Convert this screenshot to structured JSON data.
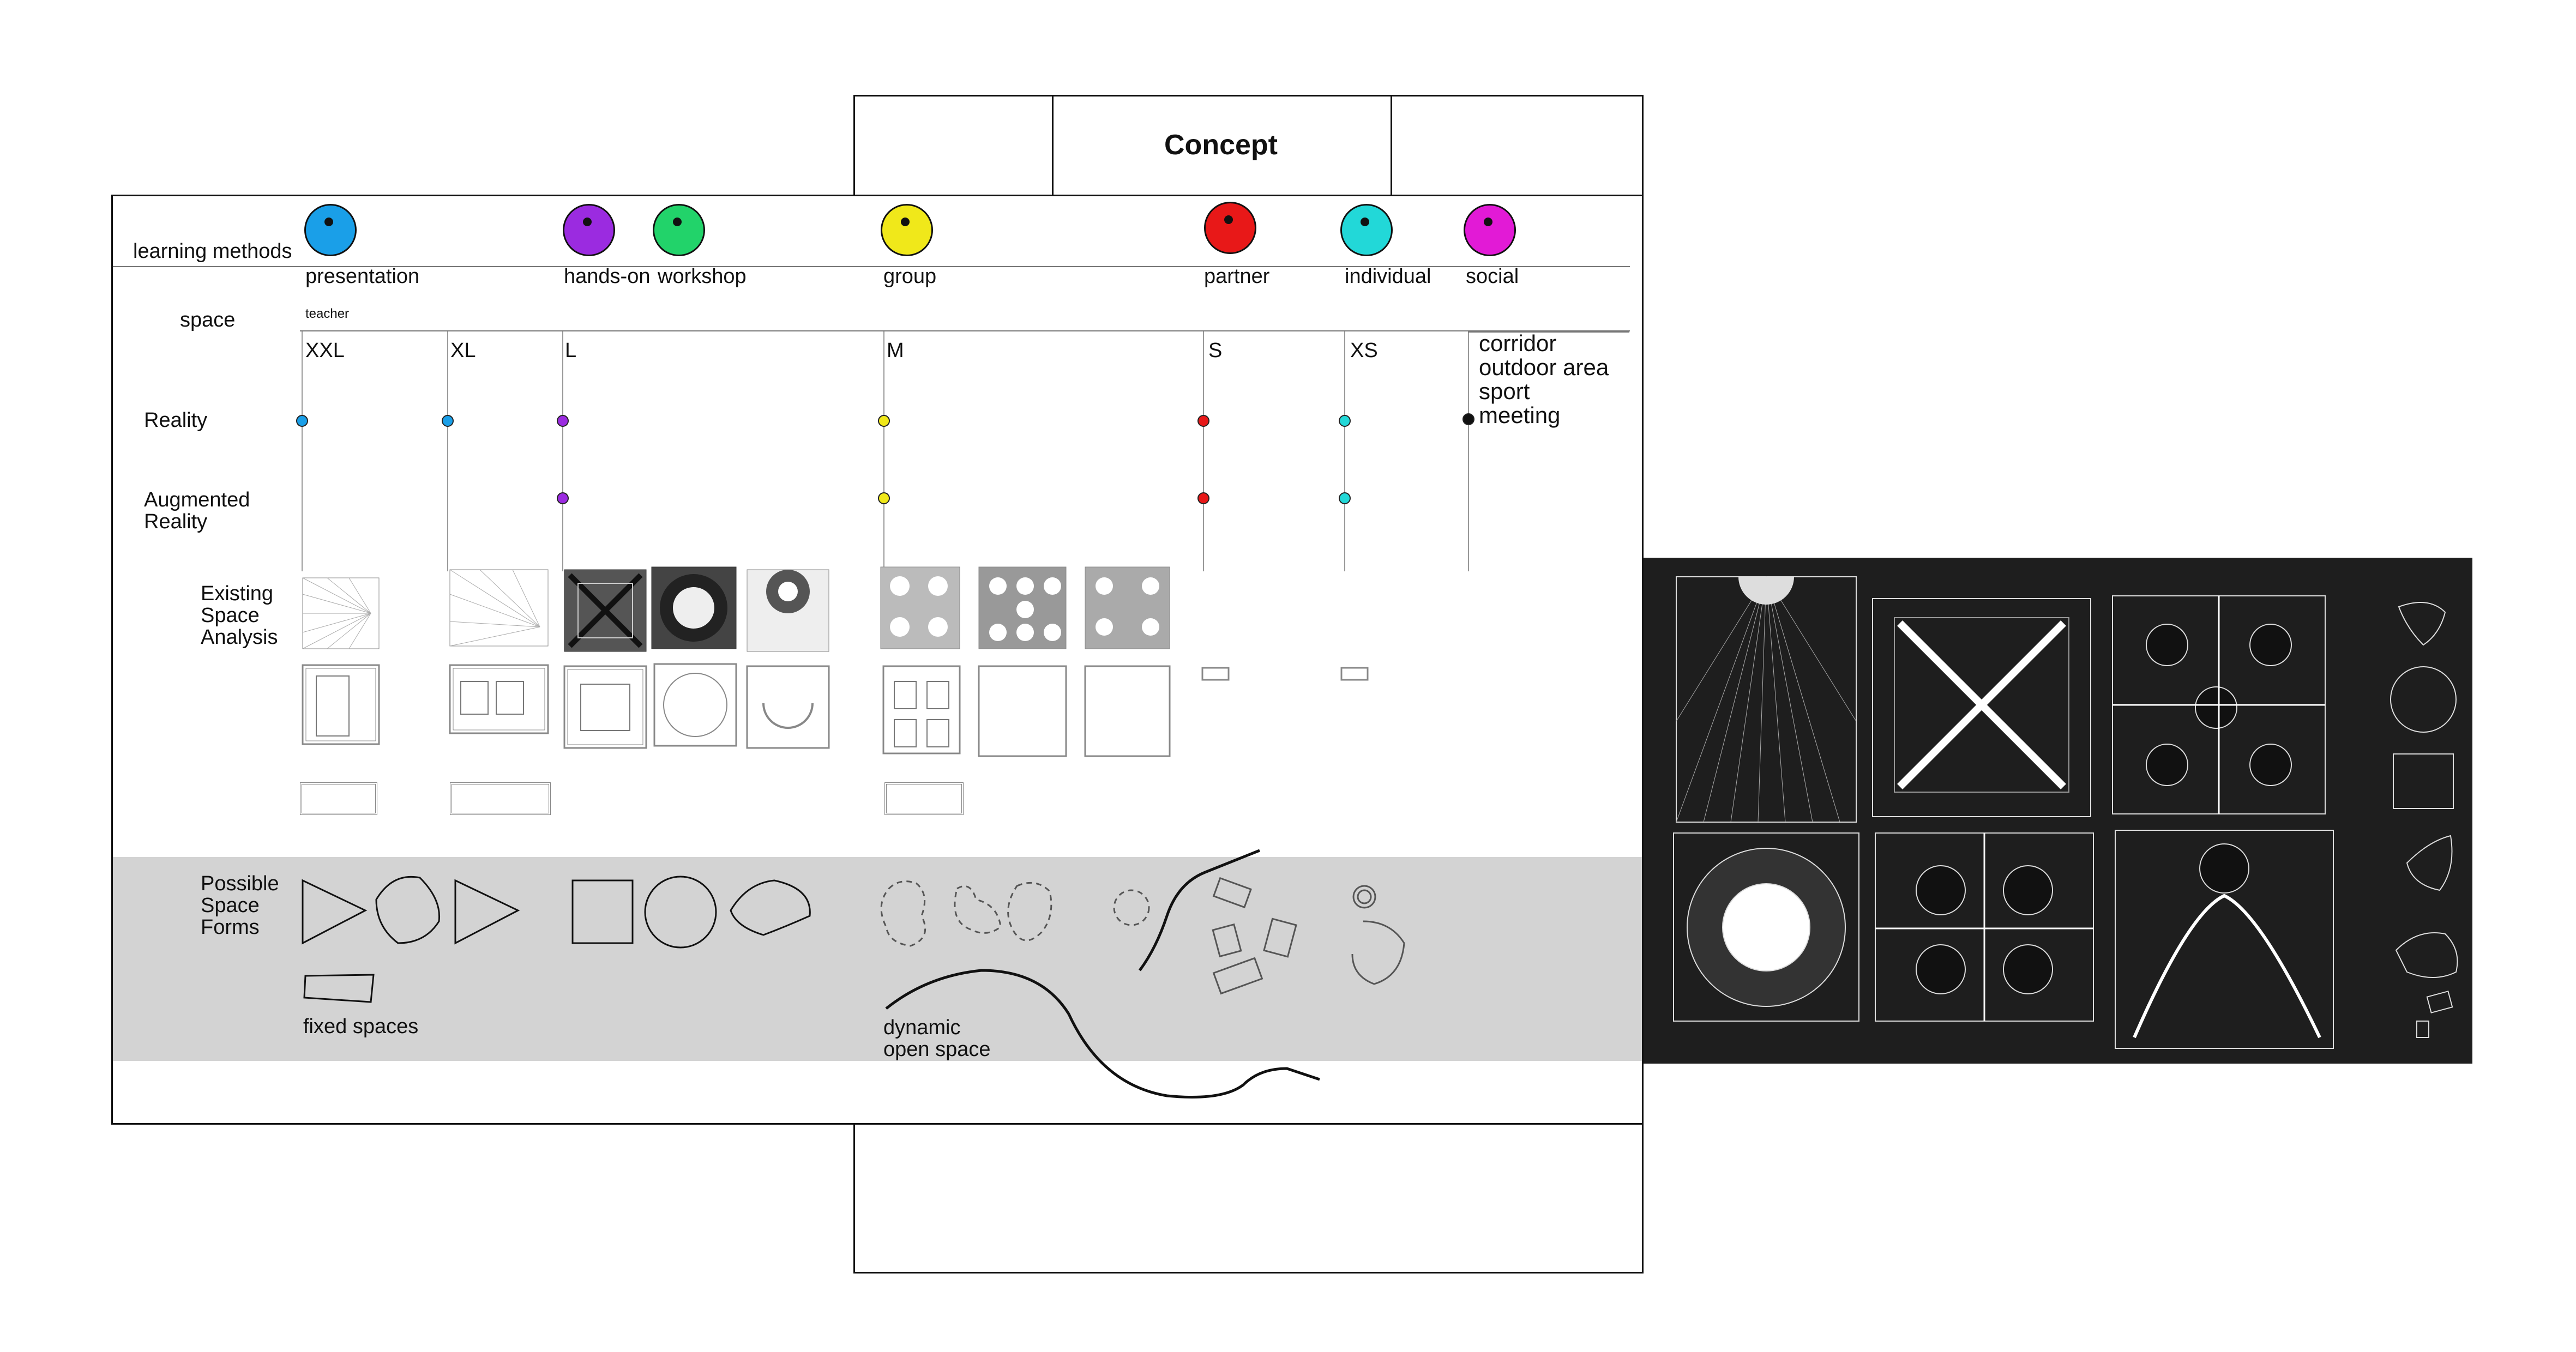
{
  "header": {
    "title": "Concept"
  },
  "learning_methods": {
    "label": "learning methods",
    "items": [
      {
        "label": "presentation",
        "color": "#1a9fe8"
      },
      {
        "label": "hands-on",
        "color": "#9b2be0"
      },
      {
        "label": "workshop",
        "color": "#22d36a"
      },
      {
        "label": "group",
        "color": "#f0e81a"
      },
      {
        "label": "partner",
        "color": "#e81818"
      },
      {
        "label": "individual",
        "color": "#22d8d8"
      },
      {
        "label": "social",
        "color": "#e21ad6"
      }
    ],
    "teacher_note": "teacher"
  },
  "space": {
    "label": "space",
    "sizes": [
      "XXL",
      "XL",
      "L",
      "M",
      "S",
      "XS"
    ],
    "other_spaces": [
      "corridor",
      "outdoor area",
      "sport",
      "meeting"
    ]
  },
  "rows": {
    "reality": "Reality",
    "augmented_1": "Augmented",
    "augmented_2": "Reality",
    "existing_1": "Existing",
    "existing_2": "Space",
    "existing_3": "Analysis",
    "possible_1": "Possible",
    "possible_2": "Space",
    "possible_3": "Forms"
  },
  "forms": {
    "fixed_label": "fixed spaces",
    "dynamic_label_1": "dynamic",
    "dynamic_label_2": "open space"
  },
  "colors": {
    "band": "#d3d3d3",
    "dark_panel": "#1e1e1e",
    "line": "#111111"
  }
}
